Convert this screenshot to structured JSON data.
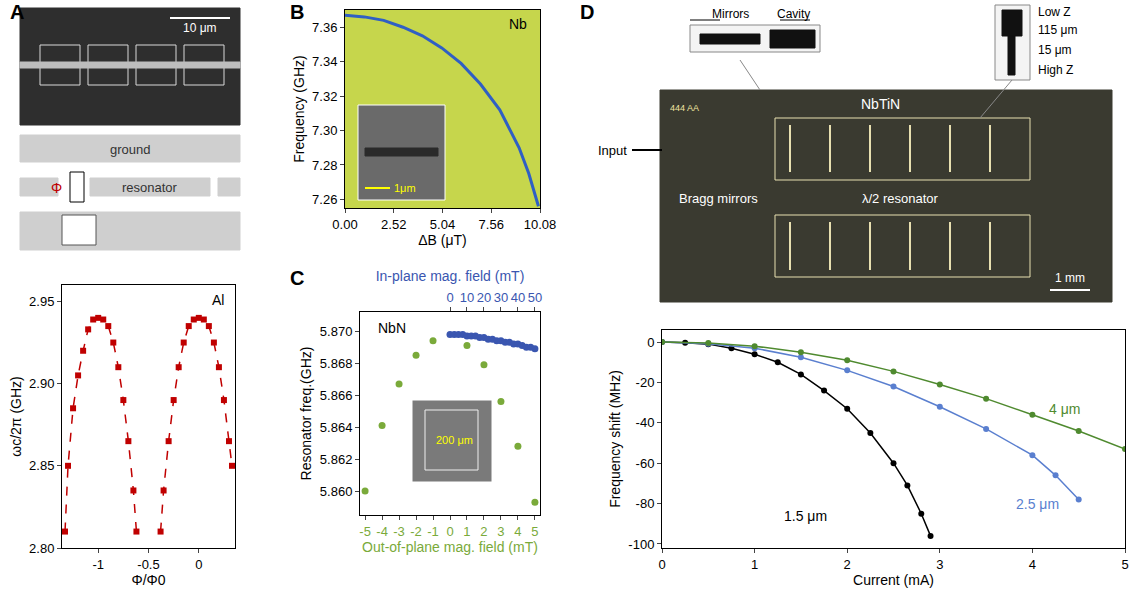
{
  "chart_data": [
    {
      "panel": "A",
      "type": "line",
      "xlabel": "Φ/Φ0",
      "ylabel": "ωc/2π (GHz)",
      "xlim": [
        -1.36,
        0.36
      ],
      "xticks": [
        -1,
        -0.5,
        0
      ],
      "ylim": [
        2.8,
        2.96
      ],
      "yticks": [
        {
          "value": 2.8,
          "label": "2.80"
        },
        2.85,
        {
          "value": 2.9,
          "label": "2.90"
        },
        2.95
      ],
      "annotations": [
        "10 μm",
        "ground",
        "resonator",
        "Φ",
        "Al"
      ],
      "series": [
        {
          "color": "#c00000",
          "marker": "square",
          "line_style": "dash",
          "x": [
            -1.33,
            -1.3,
            -1.25,
            -1.2,
            -1.15,
            -1.1,
            -1.05,
            -1,
            -0.95,
            -0.9,
            -0.85,
            -0.8,
            -0.75,
            -0.7,
            -0.65,
            -0.62,
            -0.5,
            -0.38,
            -0.35,
            -0.3,
            -0.25,
            -0.2,
            -0.15,
            -0.1,
            -0.05,
            0,
            0.05,
            0.1,
            0.15,
            0.2,
            0.25,
            0.3,
            0.33
          ],
          "values": [
            2.81,
            2.85,
            2.885,
            2.905,
            2.92,
            2.933,
            2.939,
            2.94,
            2.939,
            2.935,
            2.925,
            2.91,
            2.89,
            2.865,
            2.835,
            2.81,
            null,
            2.81,
            2.835,
            2.865,
            2.89,
            2.91,
            2.925,
            2.935,
            2.939,
            2.94,
            2.939,
            2.935,
            2.925,
            2.91,
            2.89,
            2.865,
            2.85
          ]
        }
      ]
    },
    {
      "panel": "B",
      "type": "line",
      "xlabel": "ΔB (μT)",
      "ylabel": "Frequency (GHz)",
      "xlim": [
        0,
        10.08
      ],
      "xticks": [
        {
          "value": 0,
          "label": "0.00"
        },
        2.52,
        5.04,
        7.56,
        10.08
      ],
      "ylim": [
        7.255,
        7.37
      ],
      "yticks": [
        7.26,
        7.28,
        {
          "value": 7.3,
          "label": "7.30"
        },
        7.32,
        7.34,
        7.36
      ],
      "annotations": [
        "Nb",
        "1μm"
      ],
      "series": [
        {
          "color": "#2f5fc4",
          "x": [
            0,
            1,
            2,
            3,
            4,
            5,
            6,
            7,
            8,
            9,
            9.5,
            10
          ],
          "values": [
            7.367,
            7.366,
            7.364,
            7.36,
            7.355,
            7.348,
            7.339,
            7.327,
            7.312,
            7.29,
            7.275,
            7.256
          ]
        }
      ]
    },
    {
      "panel": "C",
      "type": "scatter",
      "xlabel": "Out-of-plane mag. field (mT)",
      "x2label": "In-plane mag. field (mT)",
      "ylabel": "Resonator freq.(GHz)",
      "xlim": [
        -5.3,
        5.3
      ],
      "xticks": [
        -5,
        -4,
        -3,
        -2,
        -1,
        0,
        1,
        2,
        3,
        4,
        5
      ],
      "x2lim": [
        -53,
        53
      ],
      "x2ticks": [
        0,
        10,
        20,
        30,
        40,
        50
      ],
      "ylim": [
        5.8585,
        5.8712
      ],
      "yticks": [
        {
          "value": 5.86,
          "label": "5.860"
        },
        5.862,
        5.864,
        5.866,
        5.868,
        {
          "value": 5.87,
          "label": "5.870"
        }
      ],
      "annotations": [
        "NbN",
        "200 μm"
      ],
      "series": [
        {
          "color": "#7aaa3a",
          "marker": "circle",
          "x": [
            -5,
            -4,
            -3,
            -2,
            -1,
            1,
            2,
            3,
            4,
            5
          ],
          "values": [
            5.86,
            5.8641,
            5.8667,
            5.8685,
            5.8694,
            5.8691,
            5.8679,
            5.8656,
            5.8628,
            5.8593
          ]
        },
        {
          "color": "#3a56b0",
          "marker": "circle",
          "axis": "x2",
          "x": [
            0,
            2.5,
            5,
            7.5,
            10,
            12.5,
            15,
            17.5,
            20,
            22.5,
            25,
            27.5,
            30,
            32.5,
            35,
            37.5,
            40,
            42.5,
            45,
            47.5,
            50
          ],
          "values": [
            5.8698,
            5.8698,
            5.8698,
            5.8698,
            5.8697,
            5.8697,
            5.8697,
            5.8696,
            5.8696,
            5.8695,
            5.8695,
            5.8694,
            5.8694,
            5.8693,
            5.8693,
            5.8692,
            5.8692,
            5.8691,
            5.869,
            5.869,
            5.8689
          ]
        }
      ]
    },
    {
      "panel": "D",
      "type": "line",
      "xlabel": "Current (mA)",
      "ylabel": "Frequency shift (MHz)",
      "xlim": [
        0,
        5
      ],
      "xticks": [
        0,
        1,
        2,
        3,
        4,
        5
      ],
      "ylim": [
        -102,
        6
      ],
      "yticks": [
        -100,
        -80,
        -60,
        -40,
        -20,
        0
      ],
      "annotations": [
        "Mirrors",
        "Cavity",
        "Low Z",
        "115 μm",
        "15 μm",
        "High Z",
        "444 AA",
        "NbTiN",
        "Input",
        "Bragg mirrors",
        "λ/2 resonator",
        "1 mm"
      ],
      "series": [
        {
          "name": "1.5 μm",
          "color": "#000000",
          "marker": "circle",
          "x": [
            0,
            0.25,
            0.5,
            0.75,
            1,
            1.25,
            1.5,
            1.75,
            2,
            2.25,
            2.5,
            2.65,
            2.8,
            2.9
          ],
          "values": [
            0,
            -0.3,
            -1,
            -3,
            -6,
            -10,
            -16,
            -24,
            -33,
            -45,
            -60,
            -71,
            -85,
            -96
          ]
        },
        {
          "name": "2.5 μm",
          "color": "#5a7fcf",
          "marker": "circle",
          "x": [
            0,
            0.5,
            1,
            1.5,
            2,
            2.5,
            3,
            3.5,
            4,
            4.25,
            4.5
          ],
          "values": [
            0,
            -0.8,
            -3,
            -7.5,
            -14,
            -22,
            -32,
            -43,
            -56,
            -66,
            -78
          ]
        },
        {
          "name": "4 μm",
          "color": "#4f8a2f",
          "marker": "circle",
          "x": [
            0,
            0.5,
            1,
            1.5,
            2,
            2.5,
            3,
            3.5,
            4,
            4.5,
            5
          ],
          "values": [
            0,
            -0.5,
            -2,
            -5,
            -9,
            -14.5,
            -21,
            -28,
            -36,
            -44,
            -53
          ]
        }
      ]
    }
  ]
}
